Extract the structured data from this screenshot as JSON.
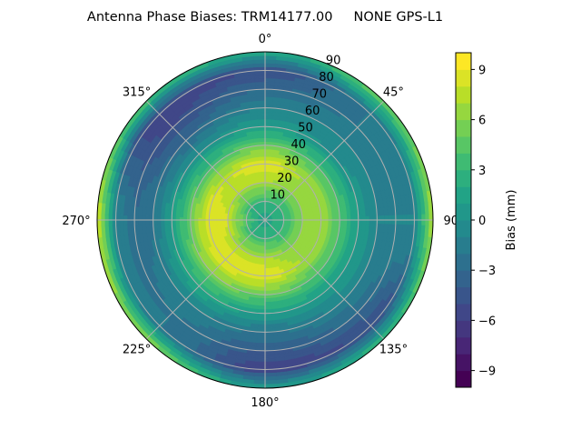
{
  "chart_data": {
    "type": "heatmap",
    "subtype": "polar-contourf",
    "title": "Antenna Phase Biases: TRM14177.00     NONE GPS-L1",
    "theta_direction": "clockwise",
    "theta_zero": "north",
    "theta_tick_labels": [
      "0°",
      "45°",
      "90°",
      "135°",
      "180°",
      "225°",
      "270°",
      "315°"
    ],
    "theta_ticks": [
      0,
      45,
      90,
      135,
      180,
      225,
      270,
      315
    ],
    "r_ticks": [
      10,
      20,
      30,
      40,
      50,
      60,
      70,
      80,
      90
    ],
    "r_tick_labels": [
      "10",
      "20",
      "30",
      "40",
      "50",
      "60",
      "70",
      "80",
      "90"
    ],
    "rlim": [
      0,
      90
    ],
    "grid": true,
    "azimuths": [
      0,
      45,
      90,
      135,
      180,
      225,
      270,
      315
    ],
    "radii": [
      0,
      10,
      20,
      30,
      40,
      50,
      60,
      70,
      80,
      90
    ],
    "values": [
      [
        1,
        3,
        7,
        9,
        5,
        1,
        -1,
        -3,
        -5,
        2
      ],
      [
        1,
        3,
        6,
        7,
        4,
        0,
        -1,
        -2,
        -2,
        5
      ],
      [
        1,
        3,
        6,
        7,
        4,
        1,
        -1,
        -1,
        -1,
        7
      ],
      [
        1,
        3,
        6,
        7,
        4,
        1,
        -1,
        -3,
        -5,
        3
      ],
      [
        1,
        3,
        7,
        9,
        5,
        1,
        -2,
        -4,
        -6,
        1
      ],
      [
        1,
        3,
        7,
        9,
        6,
        2,
        -1,
        -2,
        -2,
        6
      ],
      [
        1,
        4,
        8,
        9,
        5,
        1,
        -2,
        -3,
        -1,
        8
      ],
      [
        1,
        3,
        7,
        8,
        4,
        0,
        -3,
        -5,
        -6,
        4
      ]
    ],
    "colorbar": {
      "label": "Bias (mm)",
      "range": [
        -10,
        10
      ],
      "levels": 20,
      "ticks": [
        -9,
        -6,
        -3,
        0,
        3,
        6,
        9
      ],
      "tick_labels": [
        "−9",
        "−6",
        "−3",
        "0",
        "3",
        "6",
        "9"
      ],
      "colormap": "viridis"
    }
  }
}
